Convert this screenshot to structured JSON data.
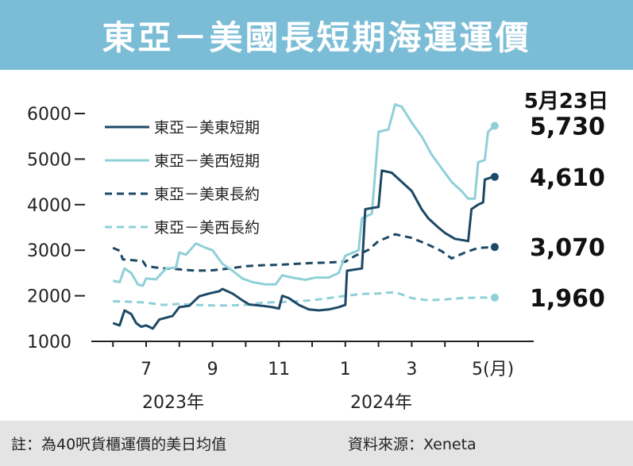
{
  "title": "東亞－美國長短期海運運價",
  "note": "註：為40呎貨櫃運價的美日均值",
  "source": "資料來源：Xeneta",
  "date_label": "5月23日",
  "chart_data": {
    "type": "line",
    "title": "東亞－美國長短期海運運價",
    "ylim": [
      1000,
      6000
    ],
    "yticks": [
      "6000",
      "5000",
      "4000",
      "3000",
      "2000",
      "1000"
    ],
    "xticks": [
      "7",
      "9",
      "11",
      "1",
      "3",
      "5(月)"
    ],
    "year_labels": [
      "2023年",
      "2024年"
    ],
    "xunit": "month (2023-06 to 2024-05)",
    "series": [
      {
        "name": "東亞－美東短期",
        "color": "#1d4966",
        "style": "solid",
        "end_label": "4,610",
        "end_value": 4610,
        "points": [
          [
            6.0,
            1400
          ],
          [
            6.2,
            1350
          ],
          [
            6.35,
            1680
          ],
          [
            6.55,
            1600
          ],
          [
            6.7,
            1400
          ],
          [
            6.85,
            1320
          ],
          [
            7.0,
            1350
          ],
          [
            7.2,
            1280
          ],
          [
            7.4,
            1480
          ],
          [
            7.6,
            1520
          ],
          [
            7.8,
            1560
          ],
          [
            8.0,
            1750
          ],
          [
            8.3,
            1780
          ],
          [
            8.6,
            1990
          ],
          [
            8.9,
            2050
          ],
          [
            9.2,
            2100
          ],
          [
            9.3,
            2150
          ],
          [
            9.6,
            2050
          ],
          [
            9.9,
            1900
          ],
          [
            10.1,
            1810
          ],
          [
            10.5,
            1780
          ],
          [
            10.8,
            1750
          ],
          [
            11.0,
            1720
          ],
          [
            11.1,
            2000
          ],
          [
            11.3,
            1950
          ],
          [
            11.6,
            1800
          ],
          [
            11.9,
            1700
          ],
          [
            12.2,
            1680
          ],
          [
            12.5,
            1700
          ],
          [
            12.8,
            1750
          ],
          [
            13.0,
            1800
          ],
          [
            13.05,
            2550
          ],
          [
            13.5,
            2600
          ],
          [
            13.6,
            3900
          ],
          [
            14.0,
            3950
          ],
          [
            14.1,
            4750
          ],
          [
            14.4,
            4700
          ],
          [
            14.7,
            4500
          ],
          [
            15.0,
            4300
          ],
          [
            15.3,
            3900
          ],
          [
            15.5,
            3700
          ],
          [
            15.8,
            3500
          ],
          [
            16.0,
            3380
          ],
          [
            16.3,
            3250
          ],
          [
            16.7,
            3200
          ],
          [
            16.8,
            3900
          ],
          [
            17.0,
            4000
          ],
          [
            17.15,
            4050
          ],
          [
            17.2,
            4550
          ],
          [
            17.4,
            4600
          ],
          [
            17.5,
            4610
          ]
        ]
      },
      {
        "name": "東亞－美西短期",
        "color": "#8fd0d8",
        "style": "solid",
        "end_label": "5,730",
        "end_value": 5730,
        "points": [
          [
            6.0,
            2330
          ],
          [
            6.2,
            2300
          ],
          [
            6.35,
            2600
          ],
          [
            6.55,
            2500
          ],
          [
            6.75,
            2250
          ],
          [
            6.9,
            2220
          ],
          [
            7.0,
            2380
          ],
          [
            7.3,
            2360
          ],
          [
            7.6,
            2600
          ],
          [
            7.9,
            2620
          ],
          [
            8.0,
            2950
          ],
          [
            8.2,
            2900
          ],
          [
            8.5,
            3150
          ],
          [
            8.8,
            3050
          ],
          [
            9.0,
            3000
          ],
          [
            9.3,
            2700
          ],
          [
            9.6,
            2550
          ],
          [
            9.9,
            2380
          ],
          [
            10.2,
            2300
          ],
          [
            10.6,
            2250
          ],
          [
            10.9,
            2250
          ],
          [
            11.1,
            2450
          ],
          [
            11.4,
            2400
          ],
          [
            11.8,
            2350
          ],
          [
            12.1,
            2400
          ],
          [
            12.5,
            2400
          ],
          [
            12.8,
            2500
          ],
          [
            13.0,
            2880
          ],
          [
            13.4,
            3000
          ],
          [
            13.5,
            3700
          ],
          [
            13.8,
            3800
          ],
          [
            14.0,
            5600
          ],
          [
            14.3,
            5650
          ],
          [
            14.5,
            6200
          ],
          [
            14.7,
            6150
          ],
          [
            15.0,
            5800
          ],
          [
            15.3,
            5500
          ],
          [
            15.6,
            5100
          ],
          [
            15.9,
            4800
          ],
          [
            16.2,
            4500
          ],
          [
            16.5,
            4300
          ],
          [
            16.7,
            4130
          ],
          [
            16.9,
            4130
          ],
          [
            17.0,
            4930
          ],
          [
            17.2,
            4980
          ],
          [
            17.3,
            5600
          ],
          [
            17.5,
            5730
          ]
        ]
      },
      {
        "name": "東亞－美東長約",
        "color": "#1d4966",
        "style": "dashed",
        "end_label": "3,070",
        "end_value": 3070,
        "points": [
          [
            6.0,
            3050
          ],
          [
            6.2,
            2990
          ],
          [
            6.3,
            2800
          ],
          [
            6.6,
            2780
          ],
          [
            6.9,
            2760
          ],
          [
            7.0,
            2650
          ],
          [
            7.3,
            2620
          ],
          [
            7.6,
            2600
          ],
          [
            8.0,
            2580
          ],
          [
            8.5,
            2550
          ],
          [
            9.0,
            2560
          ],
          [
            9.5,
            2600
          ],
          [
            10.0,
            2650
          ],
          [
            10.5,
            2670
          ],
          [
            11.0,
            2680
          ],
          [
            11.5,
            2700
          ],
          [
            12.0,
            2720
          ],
          [
            12.5,
            2730
          ],
          [
            13.0,
            2750
          ],
          [
            13.3,
            2880
          ],
          [
            13.5,
            2940
          ],
          [
            13.7,
            3010
          ],
          [
            14.0,
            3200
          ],
          [
            14.5,
            3350
          ],
          [
            15.0,
            3270
          ],
          [
            15.5,
            3120
          ],
          [
            15.9,
            2980
          ],
          [
            16.2,
            2820
          ],
          [
            16.6,
            2950
          ],
          [
            17.0,
            3050
          ],
          [
            17.5,
            3070
          ]
        ]
      },
      {
        "name": "東亞－美西長約",
        "color": "#8fd0d8",
        "style": "dashed",
        "end_label": "1,960",
        "end_value": 1960,
        "points": [
          [
            6.0,
            1880
          ],
          [
            6.5,
            1870
          ],
          [
            7.0,
            1850
          ],
          [
            7.5,
            1800
          ],
          [
            8.0,
            1820
          ],
          [
            8.5,
            1800
          ],
          [
            9.0,
            1790
          ],
          [
            9.5,
            1790
          ],
          [
            10.0,
            1800
          ],
          [
            10.5,
            1850
          ],
          [
            11.0,
            1860
          ],
          [
            11.5,
            1880
          ],
          [
            12.0,
            1900
          ],
          [
            12.5,
            1950
          ],
          [
            13.0,
            2000
          ],
          [
            13.5,
            2040
          ],
          [
            14.0,
            2050
          ],
          [
            14.5,
            2080
          ],
          [
            15.0,
            1950
          ],
          [
            15.5,
            1900
          ],
          [
            16.0,
            1920
          ],
          [
            16.5,
            1950
          ],
          [
            17.0,
            1960
          ],
          [
            17.5,
            1960
          ]
        ]
      }
    ]
  }
}
